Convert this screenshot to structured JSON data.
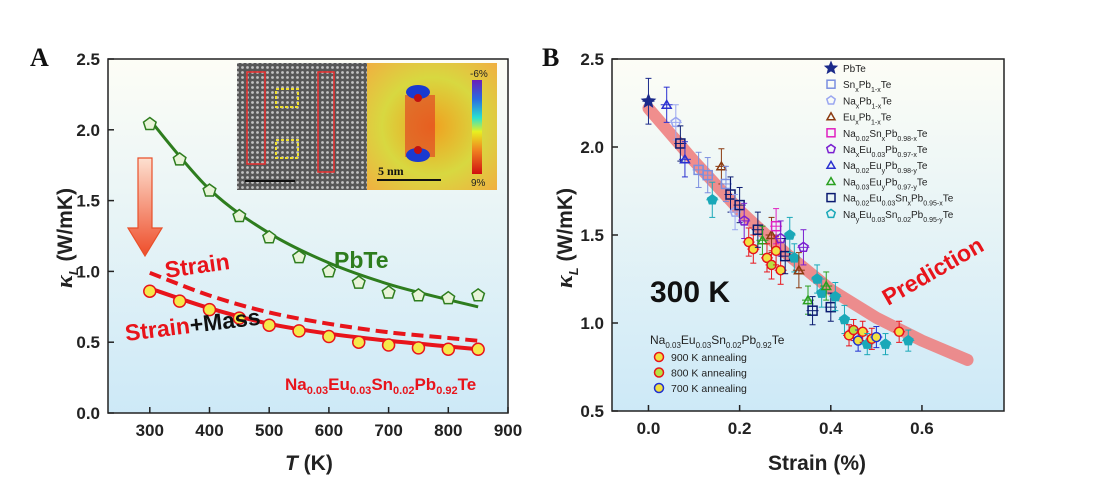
{
  "colors": {
    "pbte": "#2e7d1e",
    "strain": "#e8141b",
    "marker_fill": "#f5e84a",
    "background_top": "#fdfdf6",
    "background_bottom": "#cde9f7",
    "prediction": "#ee7a7a"
  },
  "chart_data": [
    {
      "panel": "A",
      "type": "scatter",
      "xlabel": "T (K)",
      "ylabel": "κL (W/mK)",
      "xlim": [
        230,
        900
      ],
      "ylim": [
        0.0,
        2.5
      ],
      "xticks": [
        "300",
        "400",
        "500",
        "600",
        "700",
        "800",
        "900"
      ],
      "yticks": [
        "0.0",
        "0.5",
        "1.0",
        "1.5",
        "2.0",
        "2.5"
      ],
      "series": [
        {
          "name": "PbTe",
          "marker": "pentagon",
          "x": [
            300,
            350,
            400,
            450,
            500,
            550,
            600,
            650,
            700,
            750,
            800,
            850
          ],
          "y": [
            2.04,
            1.79,
            1.57,
            1.39,
            1.24,
            1.1,
            1.0,
            0.92,
            0.85,
            0.83,
            0.81,
            0.83
          ]
        },
        {
          "name": "Strain+Mass",
          "marker": "circle",
          "x": [
            300,
            350,
            400,
            450,
            500,
            550,
            600,
            650,
            700,
            750,
            800,
            850
          ],
          "y": [
            0.86,
            0.79,
            0.73,
            0.67,
            0.62,
            0.58,
            0.54,
            0.5,
            0.48,
            0.46,
            0.45,
            0.45
          ]
        }
      ],
      "curves": [
        {
          "name": "PbTe fit",
          "style": "solid",
          "x": [
            300,
            400,
            500,
            600,
            700,
            800,
            850
          ],
          "y": [
            2.07,
            1.58,
            1.27,
            1.06,
            0.91,
            0.8,
            0.75
          ]
        },
        {
          "name": "Strain",
          "style": "dashed",
          "x": [
            300,
            400,
            500,
            600,
            700,
            800,
            850
          ],
          "y": [
            0.99,
            0.83,
            0.71,
            0.63,
            0.57,
            0.53,
            0.51
          ]
        },
        {
          "name": "Strain+Mass fit",
          "style": "solid",
          "x": [
            300,
            400,
            500,
            600,
            700,
            800,
            850
          ],
          "y": [
            0.88,
            0.74,
            0.63,
            0.56,
            0.51,
            0.47,
            0.45
          ]
        }
      ],
      "annotations": {
        "panel_label": "A",
        "pbte_label": "PbTe",
        "strain_label": "Strain",
        "strain_mass_red": "Strain",
        "strain_mass_black": "+Mass",
        "formula": [
          {
            "t": "Na",
            "s": "0.03"
          },
          {
            "t": "Eu",
            "s": "0.03"
          },
          {
            "t": "Sn",
            "s": "0.02"
          },
          {
            "t": "Pb",
            "s": "0.92"
          },
          {
            "t": "Te",
            "s": ""
          }
        ],
        "inset_scale": "5 nm",
        "colorbar_top": "-6%",
        "colorbar_bottom": "9%"
      }
    },
    {
      "panel": "B",
      "type": "scatter",
      "xlabel": "Strain (%)",
      "ylabel": "κL (W/mK)",
      "xlim": [
        -0.08,
        0.78
      ],
      "ylim": [
        0.5,
        2.5
      ],
      "xticks": [
        "0.0",
        "0.2",
        "0.4",
        "0.6"
      ],
      "yticks": [
        "0.5",
        "1.0",
        "1.5",
        "2.0",
        "2.5"
      ],
      "temperature_label": "300 K",
      "prediction_label": "Prediction",
      "prediction": {
        "x": [
          0.0,
          0.1,
          0.2,
          0.3,
          0.4,
          0.5,
          0.6,
          0.7
        ],
        "y": [
          2.22,
          1.92,
          1.64,
          1.4,
          1.19,
          1.03,
          0.9,
          0.79
        ]
      },
      "legend": [
        {
          "name": "PbTe",
          "marker": "star",
          "color": "#1b2a8a",
          "parts": [
            {
              "t": "PbTe",
              "s": ""
            }
          ]
        },
        {
          "name": "SnxPb1-xTe",
          "marker": "square",
          "color": "#7b8fe0",
          "parts": [
            {
              "t": "Sn",
              "s": "x"
            },
            {
              "t": "Pb",
              "s": "1-x"
            },
            {
              "t": "Te",
              "s": ""
            }
          ]
        },
        {
          "name": "NaxPb1-xTe",
          "marker": "pentagon",
          "color": "#9aa6f0",
          "parts": [
            {
              "t": "Na",
              "s": "x"
            },
            {
              "t": "Pb",
              "s": "1-x"
            },
            {
              "t": "Te",
              "s": ""
            }
          ]
        },
        {
          "name": "EuxPb1-xTe",
          "marker": "triangle",
          "color": "#8b3a10",
          "parts": [
            {
              "t": "Eu",
              "s": "x"
            },
            {
              "t": "Pb",
              "s": "1-x"
            },
            {
              "t": "Te",
              "s": ""
            }
          ]
        },
        {
          "name": "Na0.02SnxPb0.98-xTe",
          "marker": "square",
          "color": "#e020c0",
          "parts": [
            {
              "t": "Na",
              "s": "0.02"
            },
            {
              "t": "Sn",
              "s": "x"
            },
            {
              "t": "Pb",
              "s": "0.98-x"
            },
            {
              "t": "Te",
              "s": ""
            }
          ]
        },
        {
          "name": "NaxEu0.03Pb0.97-xTe",
          "marker": "pentagon",
          "color": "#7a1fd0",
          "parts": [
            {
              "t": "Na",
              "s": "x"
            },
            {
              "t": "Eu",
              "s": "0.03"
            },
            {
              "t": "Pb",
              "s": "0.97-x"
            },
            {
              "t": "Te",
              "s": ""
            }
          ]
        },
        {
          "name": "Na0.02EuyPb0.98-yTe",
          "marker": "triangle",
          "color": "#2a30d0",
          "parts": [
            {
              "t": "Na",
              "s": "0.02"
            },
            {
              "t": "Eu",
              "s": "y"
            },
            {
              "t": "Pb",
              "s": "0.98-y"
            },
            {
              "t": "Te",
              "s": ""
            }
          ]
        },
        {
          "name": "Na0.03EuyPb0.97-yTe",
          "marker": "triangle",
          "color": "#2aa020",
          "parts": [
            {
              "t": "Na",
              "s": "0.03"
            },
            {
              "t": "Eu",
              "s": "y"
            },
            {
              "t": "Pb",
              "s": "0.97-y"
            },
            {
              "t": "Te",
              "s": ""
            }
          ]
        },
        {
          "name": "Na0.02Eu0.03SnxPb0.95-xTe",
          "marker": "square",
          "color": "#0a1a70",
          "parts": [
            {
              "t": "Na",
              "s": "0.02"
            },
            {
              "t": "Eu",
              "s": "0.03"
            },
            {
              "t": "Sn",
              "s": "x"
            },
            {
              "t": "Pb",
              "s": "0.95-x"
            },
            {
              "t": "Te",
              "s": ""
            }
          ]
        },
        {
          "name": "NayEu0.03Sn0.02Pb0.95-yTe",
          "marker": "pentagon",
          "color": "#1aa8b8",
          "parts": [
            {
              "t": "Na",
              "s": "y"
            },
            {
              "t": "Eu",
              "s": "0.03"
            },
            {
              "t": "Sn",
              "s": "0.02"
            },
            {
              "t": "Pb",
              "s": "0.95-y"
            },
            {
              "t": "Te",
              "s": ""
            }
          ]
        }
      ],
      "anneal_title": [
        {
          "t": "Na",
          "s": "0.03"
        },
        {
          "t": "Eu",
          "s": "0.03"
        },
        {
          "t": "Sn",
          "s": "0.02"
        },
        {
          "t": "Pb",
          "s": "0.92"
        },
        {
          "t": "Te",
          "s": ""
        }
      ],
      "anneal_legend": [
        {
          "label": "900 K annealing",
          "color": "#f2e040",
          "edge": "#e8141b"
        },
        {
          "label": "800 K annealing",
          "color": "#b8e040",
          "edge": "#e8141b"
        },
        {
          "label": "700 K annealing",
          "color": "#f2e040",
          "edge": "#2030d0"
        }
      ],
      "points": [
        {
          "x": 0.0,
          "y": 2.26,
          "e": 0.13,
          "m": "star",
          "c": "#1b2a8a",
          "f": "#1b2a8a"
        },
        {
          "x": 0.04,
          "y": 2.24,
          "e": 0.1,
          "m": "triangle",
          "c": "#2a30d0",
          "f": "none"
        },
        {
          "x": 0.06,
          "y": 2.14,
          "e": 0.1,
          "m": "pentagon",
          "c": "#9aa6f0",
          "f": "none"
        },
        {
          "x": 0.07,
          "y": 2.02,
          "e": 0.1,
          "m": "square",
          "c": "#0a1a70",
          "f": "none"
        },
        {
          "x": 0.08,
          "y": 1.93,
          "e": 0.1,
          "m": "triangle",
          "c": "#2a30d0",
          "f": "none"
        },
        {
          "x": 0.11,
          "y": 1.87,
          "e": 0.1,
          "m": "square",
          "c": "#7b8fe0",
          "f": "none"
        },
        {
          "x": 0.13,
          "y": 1.84,
          "e": 0.1,
          "m": "square",
          "c": "#7b8fe0",
          "f": "none"
        },
        {
          "x": 0.14,
          "y": 1.7,
          "e": 0.1,
          "m": "pentagon",
          "c": "#1aa8b8",
          "f": "#1aa8b8"
        },
        {
          "x": 0.16,
          "y": 1.89,
          "e": 0.1,
          "m": "triangle",
          "c": "#8b3a10",
          "f": "none"
        },
        {
          "x": 0.17,
          "y": 1.79,
          "e": 0.1,
          "m": "square",
          "c": "#7b8fe0",
          "f": "none"
        },
        {
          "x": 0.18,
          "y": 1.73,
          "e": 0.1,
          "m": "square",
          "c": "#0a1a70",
          "f": "none"
        },
        {
          "x": 0.19,
          "y": 1.63,
          "e": 0.1,
          "m": "pentagon",
          "c": "#9aa6f0",
          "f": "none"
        },
        {
          "x": 0.2,
          "y": 1.67,
          "e": 0.1,
          "m": "square",
          "c": "#0a1a70",
          "f": "none"
        },
        {
          "x": 0.21,
          "y": 1.58,
          "e": 0.1,
          "m": "pentagon",
          "c": "#7a1fd0",
          "f": "none"
        },
        {
          "x": 0.22,
          "y": 1.46,
          "e": 0.08,
          "m": "circle",
          "c": "#e8141b",
          "f": "#f2e040"
        },
        {
          "x": 0.23,
          "y": 1.42,
          "e": 0.08,
          "m": "circle",
          "c": "#e8141b",
          "f": "#f2e040"
        },
        {
          "x": 0.24,
          "y": 1.53,
          "e": 0.1,
          "m": "square",
          "c": "#0a1a70",
          "f": "none"
        },
        {
          "x": 0.25,
          "y": 1.47,
          "e": 0.08,
          "m": "triangle",
          "c": "#2aa020",
          "f": "none"
        },
        {
          "x": 0.26,
          "y": 1.37,
          "e": 0.08,
          "m": "circle",
          "c": "#e8141b",
          "f": "#f2e040"
        },
        {
          "x": 0.27,
          "y": 1.5,
          "e": 0.1,
          "m": "triangle",
          "c": "#8b3a10",
          "f": "none"
        },
        {
          "x": 0.27,
          "y": 1.33,
          "e": 0.08,
          "m": "circle",
          "c": "#e8141b",
          "f": "#b8e040"
        },
        {
          "x": 0.28,
          "y": 1.55,
          "e": 0.1,
          "m": "square",
          "c": "#e020c0",
          "f": "none"
        },
        {
          "x": 0.28,
          "y": 1.41,
          "e": 0.08,
          "m": "circle",
          "c": "#e8141b",
          "f": "#f2e040"
        },
        {
          "x": 0.29,
          "y": 1.3,
          "e": 0.08,
          "m": "circle",
          "c": "#e8141b",
          "f": "#f2e040"
        },
        {
          "x": 0.29,
          "y": 1.48,
          "e": 0.1,
          "m": "pentagon",
          "c": "#7a1fd0",
          "f": "none"
        },
        {
          "x": 0.3,
          "y": 1.38,
          "e": 0.1,
          "m": "square",
          "c": "#0a1a70",
          "f": "none"
        },
        {
          "x": 0.31,
          "y": 1.5,
          "e": 0.1,
          "m": "pentagon",
          "c": "#1aa8b8",
          "f": "#1aa8b8"
        },
        {
          "x": 0.32,
          "y": 1.37,
          "e": 0.08,
          "m": "pentagon",
          "c": "#1aa8b8",
          "f": "#1aa8b8"
        },
        {
          "x": 0.33,
          "y": 1.3,
          "e": 0.1,
          "m": "triangle",
          "c": "#8b3a10",
          "f": "none"
        },
        {
          "x": 0.34,
          "y": 1.43,
          "e": 0.1,
          "m": "pentagon",
          "c": "#7a1fd0",
          "f": "none"
        },
        {
          "x": 0.35,
          "y": 1.13,
          "e": 0.08,
          "m": "triangle",
          "c": "#2aa020",
          "f": "none"
        },
        {
          "x": 0.36,
          "y": 1.07,
          "e": 0.08,
          "m": "square",
          "c": "#0a1a70",
          "f": "none"
        },
        {
          "x": 0.37,
          "y": 1.25,
          "e": 0.08,
          "m": "pentagon",
          "c": "#1aa8b8",
          "f": "#1aa8b8"
        },
        {
          "x": 0.38,
          "y": 1.17,
          "e": 0.08,
          "m": "pentagon",
          "c": "#1aa8b8",
          "f": "#1aa8b8"
        },
        {
          "x": 0.39,
          "y": 1.21,
          "e": 0.08,
          "m": "triangle",
          "c": "#2aa020",
          "f": "none"
        },
        {
          "x": 0.4,
          "y": 1.09,
          "e": 0.08,
          "m": "square",
          "c": "#0a1a70",
          "f": "none"
        },
        {
          "x": 0.41,
          "y": 1.15,
          "e": 0.08,
          "m": "pentagon",
          "c": "#1aa8b8",
          "f": "#1aa8b8"
        },
        {
          "x": 0.43,
          "y": 1.02,
          "e": 0.08,
          "m": "pentagon",
          "c": "#1aa8b8",
          "f": "#1aa8b8"
        },
        {
          "x": 0.44,
          "y": 0.93,
          "e": 0.06,
          "m": "circle",
          "c": "#e8141b",
          "f": "#f2e040"
        },
        {
          "x": 0.45,
          "y": 0.96,
          "e": 0.06,
          "m": "circle",
          "c": "#e8141b",
          "f": "#b8e040"
        },
        {
          "x": 0.46,
          "y": 0.9,
          "e": 0.06,
          "m": "circle",
          "c": "#2030d0",
          "f": "#f2e040"
        },
        {
          "x": 0.47,
          "y": 0.95,
          "e": 0.06,
          "m": "circle",
          "c": "#e8141b",
          "f": "#f2e040"
        },
        {
          "x": 0.48,
          "y": 0.88,
          "e": 0.06,
          "m": "pentagon",
          "c": "#1aa8b8",
          "f": "#1aa8b8"
        },
        {
          "x": 0.49,
          "y": 0.91,
          "e": 0.06,
          "m": "circle",
          "c": "#e8141b",
          "f": "#f2e040"
        },
        {
          "x": 0.5,
          "y": 0.92,
          "e": 0.06,
          "m": "circle",
          "c": "#2030d0",
          "f": "#f2e040"
        },
        {
          "x": 0.52,
          "y": 0.88,
          "e": 0.06,
          "m": "pentagon",
          "c": "#1aa8b8",
          "f": "#1aa8b8"
        },
        {
          "x": 0.55,
          "y": 0.95,
          "e": 0.06,
          "m": "circle",
          "c": "#e8141b",
          "f": "#f2e040"
        },
        {
          "x": 0.57,
          "y": 0.9,
          "e": 0.06,
          "m": "pentagon",
          "c": "#1aa8b8",
          "f": "#1aa8b8"
        }
      ]
    }
  ]
}
